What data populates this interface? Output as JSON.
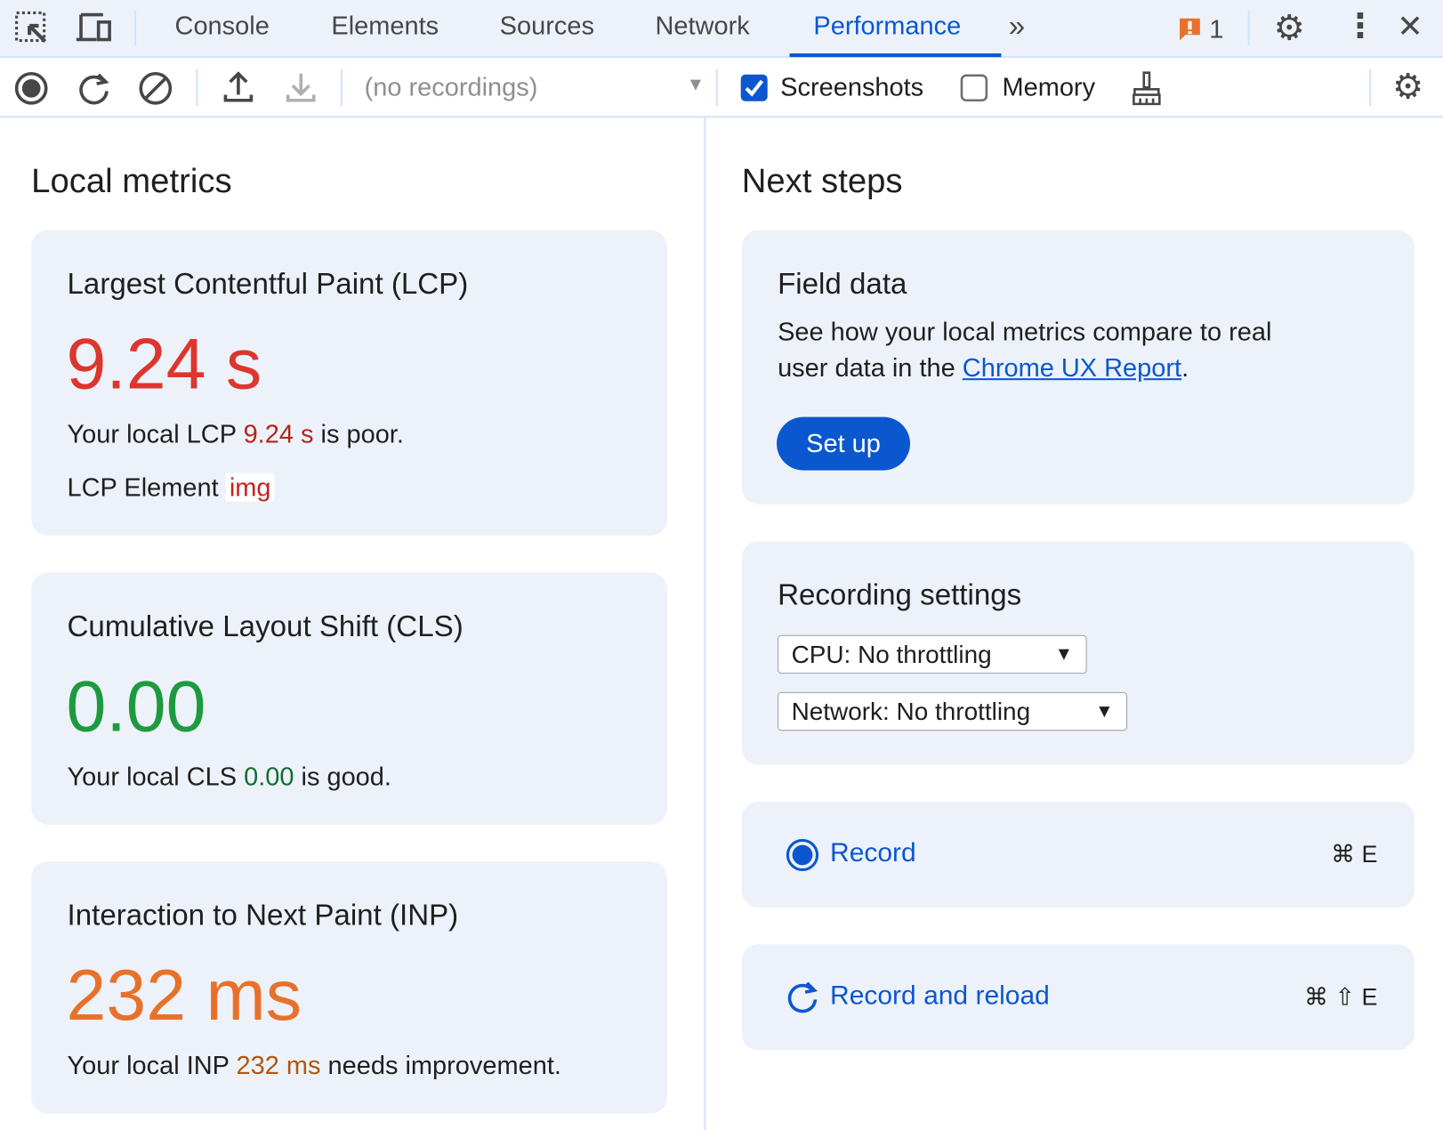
{
  "tabs": {
    "items": [
      "Console",
      "Elements",
      "Sources",
      "Network",
      "Performance"
    ],
    "active": "Performance",
    "issues_count": "1"
  },
  "toolbar": {
    "recordings_placeholder": "(no recordings)",
    "screenshots_label": "Screenshots",
    "screenshots_checked": true,
    "memory_label": "Memory",
    "memory_checked": false
  },
  "local_metrics": {
    "heading": "Local metrics",
    "lcp": {
      "title": "Largest Contentful Paint (LCP)",
      "value": "9.24 s",
      "text_prefix": "Your local LCP ",
      "text_value": "9.24 s",
      "text_suffix": " is poor.",
      "element_label": "LCP Element",
      "element_value": "img",
      "color": "#dc362e"
    },
    "cls": {
      "title": "Cumulative Layout Shift (CLS)",
      "value": "0.00",
      "text_prefix": "Your local CLS ",
      "text_value": "0.00",
      "text_suffix": " is good.",
      "color": "#1e9a3e"
    },
    "inp": {
      "title": "Interaction to Next Paint (INP)",
      "value": "232 ms",
      "text_prefix": "Your local INP ",
      "text_value": "232 ms",
      "text_suffix": " needs improvement.",
      "color": "#e8712a"
    }
  },
  "next_steps": {
    "heading": "Next steps",
    "field_data": {
      "title": "Field data",
      "text1": "See how your local metrics compare to real",
      "text2_prefix": "user data in the ",
      "link": "Chrome UX Report",
      "text2_suffix": ".",
      "button": "Set up"
    },
    "recording_settings": {
      "title": "Recording settings",
      "cpu": "CPU: No throttling",
      "network": "Network: No throttling"
    },
    "record": {
      "label": "Record",
      "shortcut": "⌘ E"
    },
    "record_reload": {
      "label": "Record and reload",
      "shortcut": "⌘ ⇧ E"
    }
  }
}
